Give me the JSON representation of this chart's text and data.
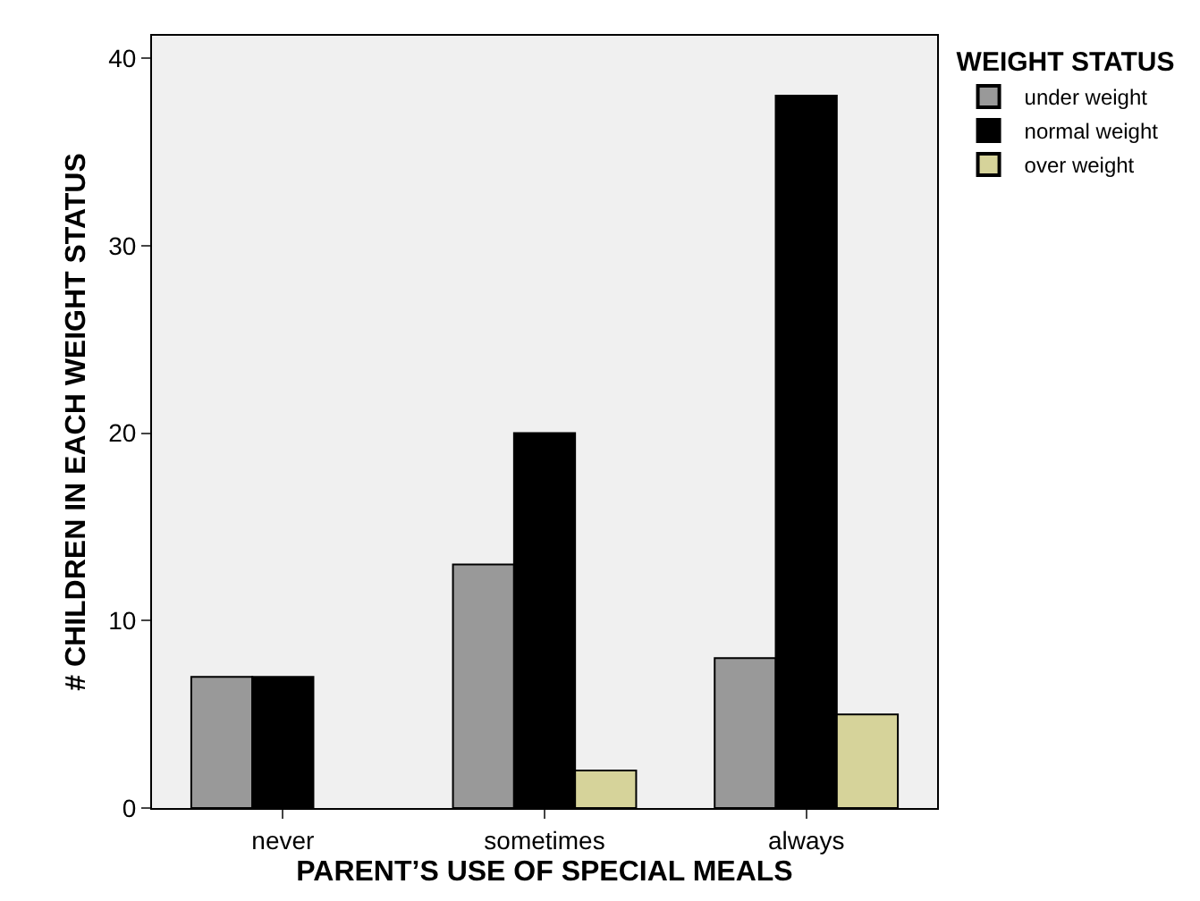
{
  "chart_data": {
    "type": "bar",
    "xlabel": "PARENT’S USE OF SPECIAL MEALS",
    "ylabel": "# CHILDREN IN EACH WEIGHT STATUS",
    "legend_title": "WEIGHT STATUS",
    "legend": "top right",
    "grid": false,
    "categories": [
      "never",
      "sometimes",
      "always"
    ],
    "series": [
      {
        "name": "under weight",
        "color": "#999999",
        "values": [
          7,
          13,
          8
        ]
      },
      {
        "name": "normal weight",
        "color": "#000000",
        "values": [
          7,
          20,
          38
        ]
      },
      {
        "name": "over weight",
        "color": "#d6d39a",
        "values": [
          null,
          2,
          5
        ]
      }
    ],
    "ylim": [
      0,
      41.2
    ],
    "yticks": [
      0,
      10,
      20,
      30,
      40
    ]
  }
}
